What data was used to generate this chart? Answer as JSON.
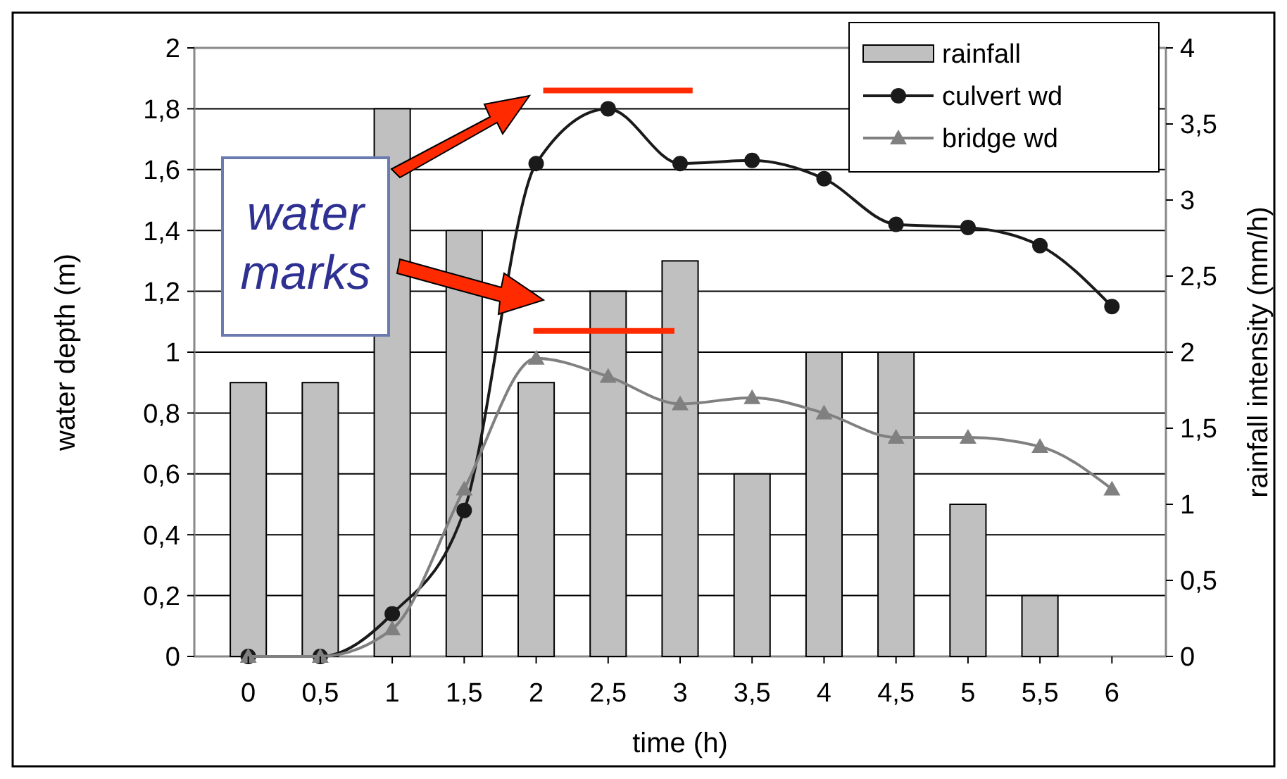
{
  "chart_data": {
    "type": "bar",
    "xlabel": "time (h)",
    "ylabel": "water depth (m)",
    "y2label": "rainfall intensity (mm/h)",
    "categories": [
      "0",
      "0,5",
      "1",
      "1,5",
      "2",
      "2,5",
      "3",
      "3,5",
      "4",
      "4,5",
      "5",
      "5,5",
      "6"
    ],
    "series": [
      {
        "name": "rainfall",
        "axis": "y2",
        "color": "#c0c0c0",
        "values": [
          1.8,
          1.8,
          3.6,
          2.8,
          1.8,
          2.4,
          2.6,
          1.2,
          2,
          2,
          1,
          0.4,
          null
        ]
      },
      {
        "name": "culvert wd",
        "type": "line",
        "color": "#1a1a1a",
        "marker": "circle",
        "values": [
          0,
          0,
          0.14,
          0.48,
          1.62,
          1.8,
          1.62,
          1.63,
          1.57,
          1.42,
          1.41,
          1.35,
          1.15
        ]
      },
      {
        "name": "bridge wd",
        "type": "line",
        "color": "#808080",
        "marker": "triangle",
        "values": [
          0,
          0,
          0.09,
          0.55,
          0.98,
          0.92,
          0.83,
          0.85,
          0.8,
          0.72,
          0.72,
          0.69,
          0.55
        ]
      }
    ],
    "ylim": [
      0,
      2
    ],
    "yticks": [
      0,
      {
        "value": 0.2,
        "label": "0,2"
      },
      {
        "value": 0.4,
        "label": "0,4"
      },
      {
        "value": 0.6,
        "label": "0,6"
      },
      {
        "value": 0.8,
        "label": "0,8"
      },
      1,
      {
        "value": 1.2,
        "label": "1,2"
      },
      {
        "value": 1.4,
        "label": "1,4"
      },
      {
        "value": 1.6,
        "label": "1,6"
      },
      {
        "value": 1.8,
        "label": "1,8"
      },
      2
    ],
    "y2lim": [
      0,
      4
    ],
    "y2ticks": [
      0,
      {
        "value": 0.5,
        "label": "0,5"
      },
      1,
      {
        "value": 1.5,
        "label": "1,5"
      },
      2,
      {
        "value": 2.5,
        "label": "2,5"
      },
      3,
      {
        "value": 3.5,
        "label": "3,5"
      },
      4
    ],
    "grid": "y",
    "legend": "top right",
    "annotations": [
      "water marks"
    ]
  }
}
